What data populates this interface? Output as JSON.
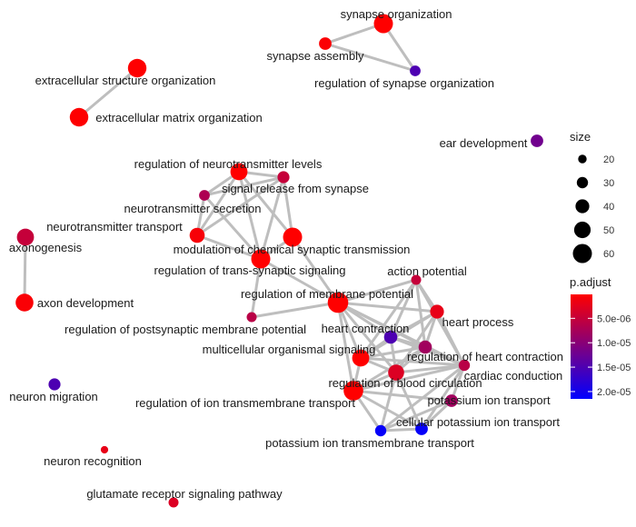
{
  "chart_data": {
    "type": "network",
    "title": "",
    "node_color_scale": [
      "#FF0000",
      "#0000FF"
    ],
    "edge_color": "#BEBEBE",
    "nodes": [
      {
        "id": "synapse-organization",
        "label": "synapse organization",
        "size": 60,
        "p_adjust": 1e-07
      },
      {
        "id": "synapse-assembly",
        "label": "synapse assembly",
        "size": 35,
        "p_adjust": 4e-07
      },
      {
        "id": "regulation-of-synapse-organization",
        "label": "regulation of synapse organization",
        "size": 28,
        "p_adjust": 1.5e-05
      },
      {
        "id": "extracellular-structure-organization",
        "label": "extracellular structure organization",
        "size": 58,
        "p_adjust": 2e-07
      },
      {
        "id": "extracellular-matrix-organization",
        "label": "extracellular matrix organization",
        "size": 58,
        "p_adjust": 2e-07
      },
      {
        "id": "ear-development",
        "label": "ear development",
        "size": 35,
        "p_adjust": 1.2e-05
      },
      {
        "id": "regulation-of-neurotransmitter-levels",
        "label": "regulation of neurotransmitter levels",
        "size": 52,
        "p_adjust": 1e-07
      },
      {
        "id": "signal-release-from-synapse",
        "label": "signal release from synapse",
        "size": 33,
        "p_adjust": 5e-06
      },
      {
        "id": "neurotransmitter-secretion",
        "label": "neurotransmitter secretion",
        "size": 28,
        "p_adjust": 7e-06
      },
      {
        "id": "neurotransmitter-transport",
        "label": "neurotransmitter transport",
        "size": 45,
        "p_adjust": 8e-07
      },
      {
        "id": "modulation-of-chemical-synaptic-transmission",
        "label": "modulation of chemical synaptic transmission",
        "size": 60,
        "p_adjust": 1e-07
      },
      {
        "id": "regulation-of-trans-synaptic-signaling",
        "label": "regulation of trans-synaptic signaling",
        "size": 60,
        "p_adjust": 1e-07
      },
      {
        "id": "axonogenesis",
        "label": "axonogenesis",
        "size": 52,
        "p_adjust": 5e-06
      },
      {
        "id": "axon-development",
        "label": "axon development",
        "size": 55,
        "p_adjust": 5e-07
      },
      {
        "id": "action-potential",
        "label": "action potential",
        "size": 25,
        "p_adjust": 5e-06
      },
      {
        "id": "regulation-of-membrane-potential",
        "label": "regulation of membrane potential",
        "size": 65,
        "p_adjust": 1e-07
      },
      {
        "id": "heart-process",
        "label": "heart process",
        "size": 40,
        "p_adjust": 2e-06
      },
      {
        "id": "regulation-of-postsynaptic-membrane-potential",
        "label": "regulation of postsynaptic membrane potential",
        "size": 25,
        "p_adjust": 6e-06
      },
      {
        "id": "heart-contraction",
        "label": "heart contraction",
        "size": 38,
        "p_adjust": 1.5e-05
      },
      {
        "id": "multicellular-organismal-signaling",
        "label": "multicellular organismal signaling",
        "size": 52,
        "p_adjust": 1e-07
      },
      {
        "id": "regulation-of-heart-contraction",
        "label": "regulation of heart contraction",
        "size": 38,
        "p_adjust": 8e-06
      },
      {
        "id": "regulation-of-blood-circulation",
        "label": "regulation of blood circulation",
        "size": 48,
        "p_adjust": 3e-06
      },
      {
        "id": "cardiac-conduction",
        "label": "cardiac conduction",
        "size": 30,
        "p_adjust": 6e-06
      },
      {
        "id": "regulation-of-ion-transmembrane-transport",
        "label": "regulation of ion transmembrane transport",
        "size": 62,
        "p_adjust": 1e-07
      },
      {
        "id": "potassium-ion-transport",
        "label": "potassium ion transport",
        "size": 35,
        "p_adjust": 8e-06
      },
      {
        "id": "cellular-potassium-ion-transport",
        "label": "cellular potassium ion transport",
        "size": 35,
        "p_adjust": 2.1e-05
      },
      {
        "id": "potassium-ion-transmembrane-transport",
        "label": "potassium ion transmembrane transport",
        "size": 30,
        "p_adjust": 2.1e-05
      },
      {
        "id": "neuron-migration",
        "label": "neuron migration",
        "size": 33,
        "p_adjust": 1.5e-05
      },
      {
        "id": "neuron-recognition",
        "label": "neuron recognition",
        "size": 16,
        "p_adjust": 2e-06
      },
      {
        "id": "glutamate-receptor-signaling-pathway",
        "label": "glutamate receptor signaling pathway",
        "size": 25,
        "p_adjust": 3e-06
      }
    ],
    "edges": [
      [
        "synapse-organization",
        "synapse-assembly"
      ],
      [
        "synapse-organization",
        "regulation-of-synapse-organization"
      ],
      [
        "synapse-assembly",
        "regulation-of-synapse-organization"
      ],
      [
        "extracellular-structure-organization",
        "extracellular-matrix-organization"
      ],
      [
        "axonogenesis",
        "axon-development"
      ],
      [
        "regulation-of-neurotransmitter-levels",
        "signal-release-from-synapse"
      ],
      [
        "regulation-of-neurotransmitter-levels",
        "neurotransmitter-secretion"
      ],
      [
        "regulation-of-neurotransmitter-levels",
        "neurotransmitter-transport"
      ],
      [
        "regulation-of-neurotransmitter-levels",
        "modulation-of-chemical-synaptic-transmission"
      ],
      [
        "regulation-of-neurotransmitter-levels",
        "regulation-of-trans-synaptic-signaling"
      ],
      [
        "signal-release-from-synapse",
        "neurotransmitter-secretion"
      ],
      [
        "signal-release-from-synapse",
        "neurotransmitter-transport"
      ],
      [
        "signal-release-from-synapse",
        "modulation-of-chemical-synaptic-transmission"
      ],
      [
        "signal-release-from-synapse",
        "regulation-of-trans-synaptic-signaling"
      ],
      [
        "neurotransmitter-secretion",
        "neurotransmitter-transport"
      ],
      [
        "neurotransmitter-secretion",
        "regulation-of-trans-synaptic-signaling"
      ],
      [
        "neurotransmitter-transport",
        "regulation-of-trans-synaptic-signaling"
      ],
      [
        "modulation-of-chemical-synaptic-transmission",
        "regulation-of-trans-synaptic-signaling"
      ],
      [
        "modulation-of-chemical-synaptic-transmission",
        "regulation-of-membrane-potential"
      ],
      [
        "regulation-of-trans-synaptic-signaling",
        "regulation-of-membrane-potential"
      ],
      [
        "regulation-of-trans-synaptic-signaling",
        "regulation-of-postsynaptic-membrane-potential"
      ],
      [
        "regulation-of-membrane-potential",
        "regulation-of-postsynaptic-membrane-potential"
      ],
      [
        "regulation-of-membrane-potential",
        "action-potential"
      ],
      [
        "regulation-of-membrane-potential",
        "multicellular-organismal-signaling"
      ],
      [
        "regulation-of-membrane-potential",
        "regulation-of-ion-transmembrane-transport"
      ],
      [
        "regulation-of-membrane-potential",
        "heart-process"
      ],
      [
        "regulation-of-membrane-potential",
        "regulation-of-heart-contraction"
      ],
      [
        "regulation-of-membrane-potential",
        "regulation-of-blood-circulation"
      ],
      [
        "regulation-of-membrane-potential",
        "heart-contraction"
      ],
      [
        "regulation-of-membrane-potential",
        "cardiac-conduction"
      ],
      [
        "action-potential",
        "heart-contraction"
      ],
      [
        "action-potential",
        "heart-process"
      ],
      [
        "action-potential",
        "multicellular-organismal-signaling"
      ],
      [
        "action-potential",
        "cardiac-conduction"
      ],
      [
        "action-potential",
        "regulation-of-heart-contraction"
      ],
      [
        "heart-process",
        "heart-contraction"
      ],
      [
        "heart-process",
        "regulation-of-heart-contraction"
      ],
      [
        "heart-process",
        "regulation-of-blood-circulation"
      ],
      [
        "heart-process",
        "cardiac-conduction"
      ],
      [
        "heart-process",
        "multicellular-organismal-signaling"
      ],
      [
        "heart-contraction",
        "regulation-of-heart-contraction"
      ],
      [
        "heart-contraction",
        "regulation-of-blood-circulation"
      ],
      [
        "heart-contraction",
        "multicellular-organismal-signaling"
      ],
      [
        "heart-contraction",
        "cardiac-conduction"
      ],
      [
        "multicellular-organismal-signaling",
        "regulation-of-heart-contraction"
      ],
      [
        "multicellular-organismal-signaling",
        "regulation-of-blood-circulation"
      ],
      [
        "multicellular-organismal-signaling",
        "cardiac-conduction"
      ],
      [
        "multicellular-organismal-signaling",
        "regulation-of-ion-transmembrane-transport"
      ],
      [
        "regulation-of-heart-contraction",
        "regulation-of-blood-circulation"
      ],
      [
        "regulation-of-heart-contraction",
        "cardiac-conduction"
      ],
      [
        "regulation-of-blood-circulation",
        "cardiac-conduction"
      ],
      [
        "regulation-of-blood-circulation",
        "regulation-of-ion-transmembrane-transport"
      ],
      [
        "regulation-of-ion-transmembrane-transport",
        "potassium-ion-transport"
      ],
      [
        "regulation-of-ion-transmembrane-transport",
        "cellular-potassium-ion-transport"
      ],
      [
        "regulation-of-ion-transmembrane-transport",
        "potassium-ion-transmembrane-transport"
      ],
      [
        "regulation-of-ion-transmembrane-transport",
        "cardiac-conduction"
      ],
      [
        "regulation-of-ion-transmembrane-transport",
        "regulation-of-heart-contraction"
      ],
      [
        "potassium-ion-transport",
        "cellular-potassium-ion-transport"
      ],
      [
        "potassium-ion-transport",
        "potassium-ion-transmembrane-transport"
      ],
      [
        "potassium-ion-transport",
        "cardiac-conduction"
      ],
      [
        "cellular-potassium-ion-transport",
        "potassium-ion-transmembrane-transport"
      ],
      [
        "cellular-potassium-ion-transport",
        "cardiac-conduction"
      ],
      [
        "potassium-ion-transmembrane-transport",
        "cardiac-conduction"
      ],
      [
        "potassium-ion-transmembrane-transport",
        "regulation-of-blood-circulation"
      ],
      [
        "cellular-potassium-ion-transport",
        "regulation-of-blood-circulation"
      ]
    ],
    "legend": {
      "placement": "right",
      "size": {
        "title": "size",
        "breaks": [
          20,
          30,
          40,
          50,
          60
        ]
      },
      "color": {
        "title": "p.adjust",
        "ticks": [
          {
            "label": "5.0e-06",
            "value": 5e-06
          },
          {
            "label": "1.0e-05",
            "value": 1e-05
          },
          {
            "label": "1.5e-05",
            "value": 1.5e-05
          },
          {
            "label": "2.0e-05",
            "value": 2e-05
          }
        ],
        "range": [
          1e-07,
          2.15e-05
        ]
      }
    }
  }
}
